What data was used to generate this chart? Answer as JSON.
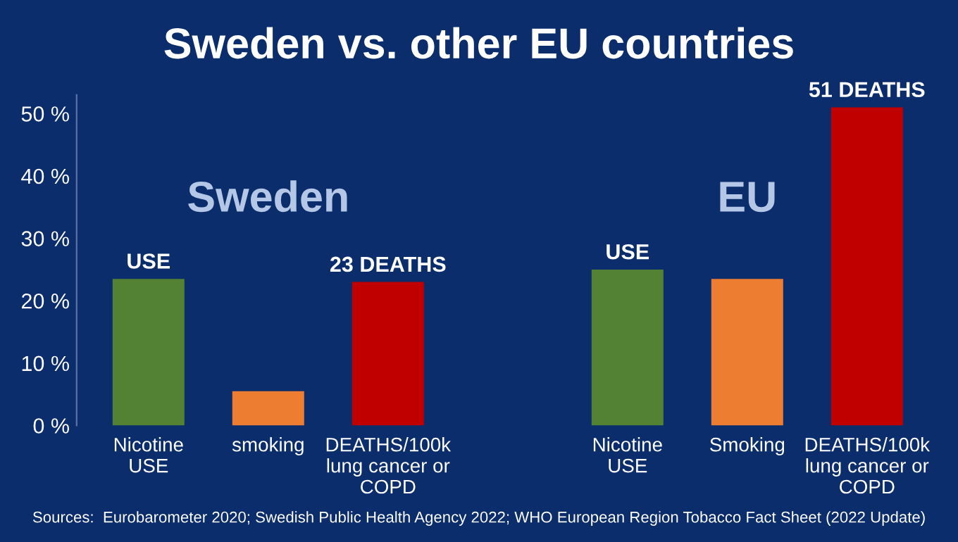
{
  "chart_data": {
    "type": "bar",
    "title": "Sweden vs. other EU countries",
    "categories": [
      "Nicotine\nUSE",
      "smoking",
      "DEATHS/100k\nlung cancer or\nCOPD",
      null,
      "Nicotine\nUSE",
      "Smoking",
      "DEATHS/100k\nlung cancer or\nCOPD"
    ],
    "values": [
      23.5,
      5.5,
      23,
      null,
      25,
      23.5,
      51
    ],
    "colors": [
      "#548235",
      "#ed7d31",
      "#c00000",
      "#000000",
      "#548235",
      "#ed7d31",
      "#c00000"
    ],
    "value_labels": [
      "USE",
      null,
      "23 DEATHS",
      null,
      "USE",
      null,
      "51 DEATHS"
    ],
    "ylim": [
      0,
      53
    ],
    "yticks": [
      {
        "value": 0,
        "label": "0 %"
      },
      {
        "value": 10,
        "label": "10 %"
      },
      {
        "value": 20,
        "label": "20 %"
      },
      {
        "value": 30,
        "label": "30 %"
      },
      {
        "value": 40,
        "label": "40 %"
      },
      {
        "value": 50,
        "label": "50 %"
      }
    ],
    "grid": false,
    "legend": false,
    "annotations": [
      "Sweden",
      "EU",
      "Sources:  Eurobarometer 2020; Swedish Public Health Agency 2022; WHO European Region Tobacco Fact Sheet (2022 Update)"
    ]
  }
}
